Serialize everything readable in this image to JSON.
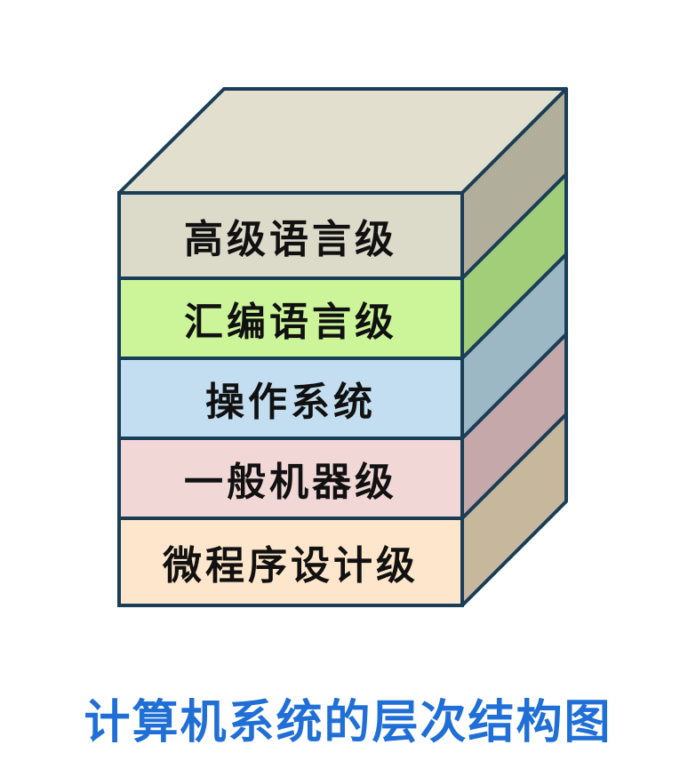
{
  "layers": [
    {
      "label": "高级语言级",
      "front_color": "#dcdac8",
      "side_color": "#b1af9b"
    },
    {
      "label": "汇编语言级",
      "front_color": "#ccf59a",
      "side_color": "#a2cd79"
    },
    {
      "label": "操作系统",
      "front_color": "#c3def0",
      "side_color": "#9cb8c5"
    },
    {
      "label": "一般机器级",
      "front_color": "#f2d7d7",
      "side_color": "#c5a8aa"
    },
    {
      "label": "微程序设计级",
      "front_color": "#fde6cb",
      "side_color": "#c7b79c"
    }
  ],
  "top_color": "#e2dfcf",
  "edge_color": "#1a3e57",
  "caption": "计算机系统的层次结构图",
  "caption_color": "#1f6fd6"
}
